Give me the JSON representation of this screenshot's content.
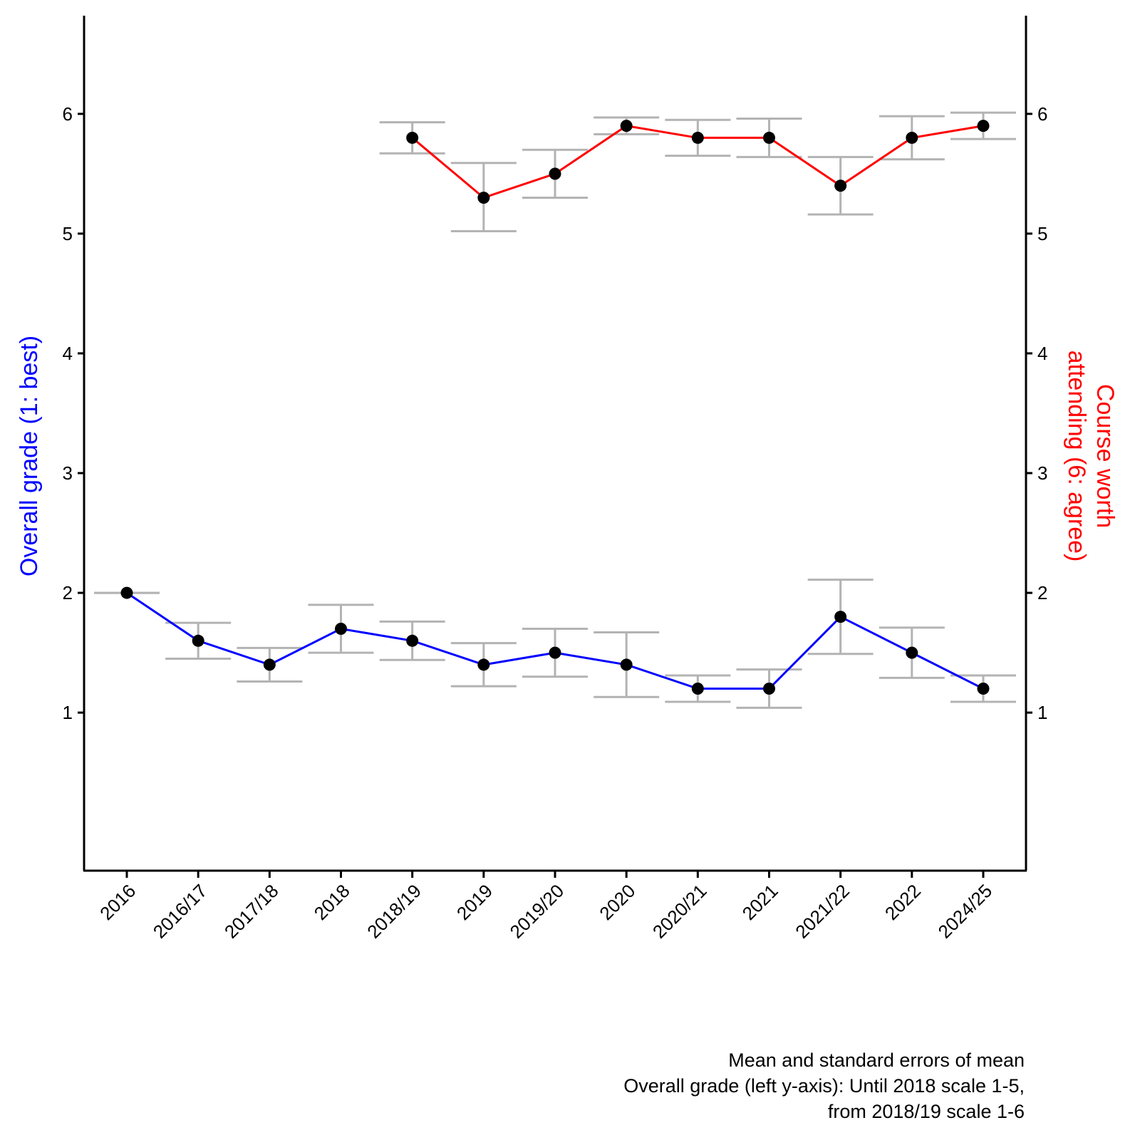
{
  "chart_data": {
    "type": "line",
    "categories": [
      "2016",
      "2016/17",
      "2017/18",
      "2018",
      "2018/19",
      "2019",
      "2019/20",
      "2020",
      "2020/21",
      "2021",
      "2021/22",
      "2022",
      "2024/25"
    ],
    "ylim": [
      -0.32,
      6.82
    ],
    "y_ticks": [
      1,
      2,
      3,
      4,
      5,
      6
    ],
    "y_tick_labels": [
      "1",
      "2",
      "3",
      "4",
      "5",
      "6"
    ],
    "grid": false,
    "ylabel_left": "Overall grade (1: best)",
    "ylabel_right_lines": [
      "Course worth",
      "attending (6: agree)"
    ],
    "caption_lines": [
      "Mean and standard errors of mean",
      "Overall grade (left y-axis): Until 2018 scale 1-5,",
      "from 2018/19 scale 1-6"
    ],
    "colors": {
      "overall_grade": "#0000ff",
      "course_worth": "#ff0000",
      "points": "#000000",
      "error_bars": "#b3b3b3"
    },
    "series": [
      {
        "name": "Overall grade",
        "axis": "left",
        "color_key": "overall_grade",
        "values": [
          2.0,
          1.6,
          1.4,
          1.7,
          1.6,
          1.4,
          1.5,
          1.4,
          1.2,
          1.2,
          1.8,
          1.5,
          1.2
        ],
        "err_low": [
          2.0,
          1.45,
          1.26,
          1.5,
          1.44,
          1.22,
          1.3,
          1.13,
          1.09,
          1.04,
          1.49,
          1.29,
          1.09
        ],
        "err_high": [
          2.0,
          1.75,
          1.54,
          1.9,
          1.76,
          1.58,
          1.7,
          1.67,
          1.31,
          1.36,
          2.11,
          1.71,
          1.31
        ]
      },
      {
        "name": "Course worth attending",
        "axis": "right",
        "color_key": "course_worth",
        "values": [
          null,
          null,
          null,
          null,
          5.8,
          5.3,
          5.5,
          5.9,
          5.8,
          5.8,
          5.4,
          5.8,
          5.9
        ],
        "err_low": [
          null,
          null,
          null,
          null,
          5.67,
          5.02,
          5.3,
          5.83,
          5.65,
          5.64,
          5.16,
          5.62,
          5.79
        ],
        "err_high": [
          null,
          null,
          null,
          null,
          5.93,
          5.59,
          5.7,
          5.97,
          5.95,
          5.96,
          5.64,
          5.98,
          6.01
        ]
      }
    ]
  }
}
